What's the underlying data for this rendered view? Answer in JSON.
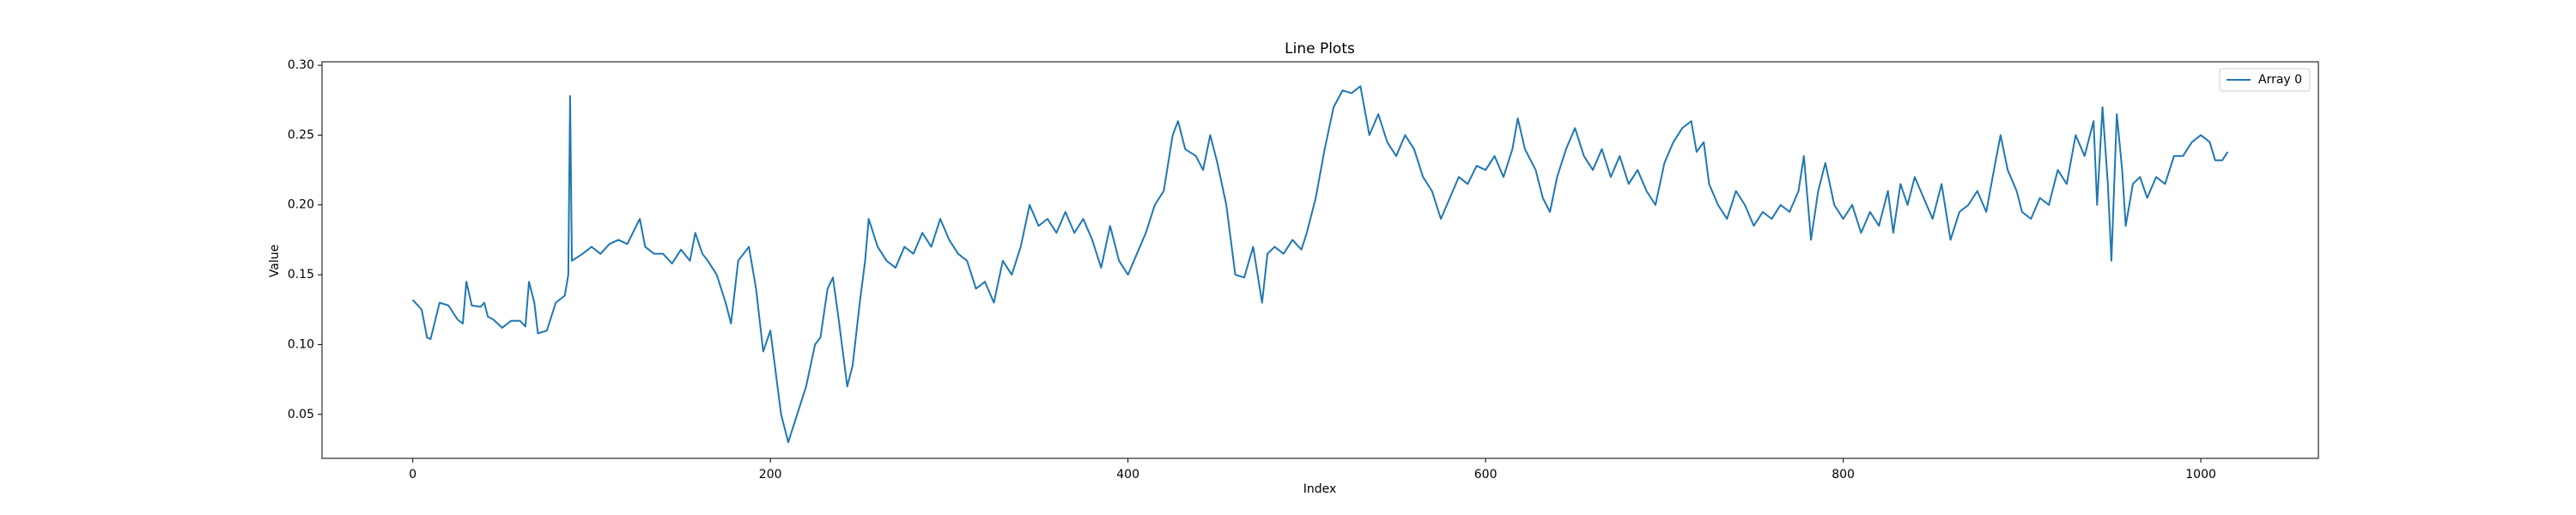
{
  "chart_data": {
    "type": "line",
    "title": "Line Plots",
    "x_label": "Index",
    "y_label": "Value",
    "x": [
      0,
      5,
      8,
      10,
      15,
      20,
      25,
      28,
      30,
      33,
      38,
      40,
      42,
      45,
      50,
      55,
      60,
      63,
      65,
      68,
      70,
      75,
      80,
      85,
      87,
      88,
      89,
      95,
      100,
      105,
      110,
      115,
      120,
      125,
      127,
      130,
      135,
      140,
      145,
      150,
      155,
      158,
      162,
      165,
      170,
      175,
      178,
      182,
      188,
      192,
      196,
      200,
      203,
      206,
      208,
      210,
      215,
      220,
      225,
      228,
      232,
      235,
      238,
      240,
      243,
      246,
      250,
      253,
      255,
      260,
      265,
      270,
      275,
      280,
      285,
      290,
      295,
      300,
      305,
      310,
      315,
      320,
      325,
      330,
      335,
      340,
      345,
      350,
      355,
      360,
      365,
      370,
      375,
      380,
      385,
      390,
      395,
      400,
      405,
      410,
      415,
      420,
      425,
      428,
      432,
      438,
      442,
      446,
      450,
      455,
      460,
      465,
      470,
      475,
      478,
      482,
      487,
      492,
      497,
      500,
      505,
      510,
      515,
      520,
      525,
      530,
      535,
      540,
      545,
      550,
      555,
      560,
      565,
      570,
      575,
      580,
      585,
      590,
      595,
      600,
      605,
      610,
      615,
      618,
      622,
      628,
      632,
      636,
      640,
      645,
      650,
      655,
      660,
      665,
      670,
      675,
      680,
      685,
      690,
      695,
      700,
      705,
      710,
      715,
      718,
      722,
      725,
      730,
      735,
      740,
      745,
      750,
      755,
      760,
      765,
      770,
      775,
      778,
      782,
      786,
      790,
      795,
      800,
      805,
      810,
      815,
      820,
      825,
      828,
      832,
      836,
      840,
      845,
      850,
      855,
      860,
      865,
      870,
      875,
      880,
      885,
      888,
      892,
      897,
      900,
      905,
      910,
      915,
      920,
      925,
      930,
      935,
      940,
      942,
      945,
      948,
      950,
      953,
      956,
      958,
      962,
      966,
      970,
      975,
      980,
      985,
      990,
      995,
      1000,
      1005,
      1008,
      1012,
      1015
    ],
    "series": [
      {
        "name": "Array 0",
        "color": "#1f77b4",
        "values": [
          0.132,
          0.125,
          0.105,
          0.104,
          0.13,
          0.128,
          0.118,
          0.115,
          0.145,
          0.128,
          0.127,
          0.13,
          0.12,
          0.118,
          0.112,
          0.117,
          0.117,
          0.113,
          0.145,
          0.13,
          0.108,
          0.11,
          0.13,
          0.135,
          0.15,
          0.278,
          0.16,
          0.165,
          0.17,
          0.165,
          0.172,
          0.175,
          0.172,
          0.185,
          0.19,
          0.17,
          0.165,
          0.165,
          0.158,
          0.168,
          0.16,
          0.18,
          0.165,
          0.16,
          0.15,
          0.13,
          0.115,
          0.16,
          0.17,
          0.14,
          0.095,
          0.11,
          0.08,
          0.05,
          0.04,
          0.03,
          0.05,
          0.07,
          0.1,
          0.105,
          0.14,
          0.148,
          0.12,
          0.1,
          0.07,
          0.085,
          0.13,
          0.16,
          0.19,
          0.17,
          0.16,
          0.155,
          0.17,
          0.165,
          0.18,
          0.17,
          0.19,
          0.175,
          0.165,
          0.16,
          0.14,
          0.145,
          0.13,
          0.16,
          0.15,
          0.17,
          0.2,
          0.185,
          0.19,
          0.18,
          0.195,
          0.18,
          0.19,
          0.175,
          0.155,
          0.185,
          0.16,
          0.15,
          0.165,
          0.18,
          0.2,
          0.21,
          0.25,
          0.26,
          0.24,
          0.235,
          0.225,
          0.25,
          0.23,
          0.2,
          0.15,
          0.148,
          0.17,
          0.13,
          0.165,
          0.17,
          0.165,
          0.175,
          0.168,
          0.18,
          0.205,
          0.24,
          0.27,
          0.282,
          0.28,
          0.285,
          0.25,
          0.265,
          0.245,
          0.235,
          0.25,
          0.24,
          0.22,
          0.21,
          0.19,
          0.205,
          0.22,
          0.215,
          0.228,
          0.225,
          0.235,
          0.22,
          0.24,
          0.262,
          0.24,
          0.225,
          0.205,
          0.195,
          0.22,
          0.24,
          0.255,
          0.235,
          0.225,
          0.24,
          0.22,
          0.235,
          0.215,
          0.225,
          0.21,
          0.2,
          0.23,
          0.245,
          0.255,
          0.26,
          0.238,
          0.245,
          0.215,
          0.2,
          0.19,
          0.21,
          0.2,
          0.185,
          0.195,
          0.19,
          0.2,
          0.195,
          0.21,
          0.235,
          0.175,
          0.21,
          0.23,
          0.2,
          0.19,
          0.2,
          0.18,
          0.195,
          0.185,
          0.21,
          0.18,
          0.215,
          0.2,
          0.22,
          0.205,
          0.19,
          0.215,
          0.175,
          0.195,
          0.2,
          0.21,
          0.195,
          0.23,
          0.25,
          0.225,
          0.21,
          0.195,
          0.19,
          0.205,
          0.2,
          0.225,
          0.215,
          0.25,
          0.235,
          0.26,
          0.2,
          0.27,
          0.215,
          0.16,
          0.265,
          0.225,
          0.185,
          0.215,
          0.22,
          0.205,
          0.22,
          0.215,
          0.235,
          0.235,
          0.245,
          0.25,
          0.245,
          0.232,
          0.232,
          0.238
        ]
      }
    ],
    "xlim": [
      -50.75,
      1065.75
    ],
    "ylim": [
      0.0185,
      0.3025
    ],
    "xticks": [
      0,
      200,
      400,
      600,
      800,
      1000
    ],
    "yticks": [
      0.05,
      {
        "value": 0.1,
        "label": "0.10"
      },
      0.15,
      {
        "value": 0.2,
        "label": "0.20"
      },
      0.25,
      {
        "value": 0.3,
        "label": "0.30"
      }
    ],
    "grid": false,
    "legend": "upper right"
  }
}
